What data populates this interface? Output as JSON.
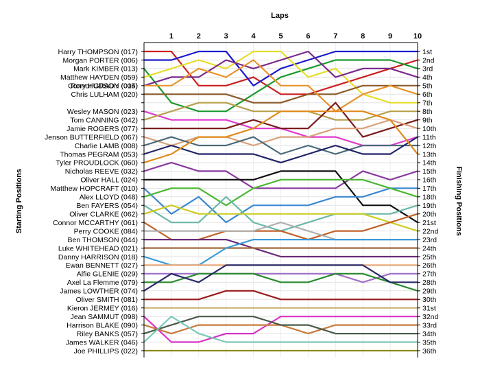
{
  "chart_data": {
    "type": "line",
    "xlabel": "Laps",
    "ylabel_left": "Starting Positions",
    "ylabel_right": "Finishing Positions",
    "x": [
      0,
      1,
      2,
      3,
      4,
      5,
      6,
      7,
      8,
      9,
      10
    ],
    "x_tick_labels": [
      "1",
      "2",
      "3",
      "4",
      "5",
      "6",
      "7",
      "8",
      "9",
      "10"
    ],
    "ylim": [
      1,
      36
    ],
    "y_inverted": true,
    "grid": "horizontal",
    "finish_labels": [
      "1st",
      "2nd",
      "3rd",
      "4th",
      "5th",
      "6th",
      "7th",
      "8th",
      "9th",
      "10th",
      "11th",
      "12th",
      "13th",
      "14th",
      "15th",
      "16th",
      "17th",
      "18th",
      "19th",
      "20th",
      "21st",
      "22nd",
      "23rd",
      "24th",
      "25th",
      "26th",
      "27th",
      "28th",
      "29th",
      "30th",
      "31st",
      "32nd",
      "33rd",
      "34th",
      "35th",
      "36th"
    ],
    "series": [
      {
        "name": "Harry THOMPSON (017)",
        "color": "#cc1f1f",
        "values": [
          1,
          1,
          5,
          5,
          4,
          6,
          6,
          5,
          4,
          3,
          2
        ]
      },
      {
        "name": "Morgan PORTER (006)",
        "color": "#1a1acc",
        "values": [
          2,
          2,
          1,
          1,
          5,
          3,
          2,
          1,
          1,
          1,
          1
        ]
      },
      {
        "name": "Mark KIMBER (013)",
        "color": "#1a9a2e",
        "values": [
          3,
          7,
          8,
          8,
          6,
          4,
          3,
          2,
          2,
          2,
          3
        ]
      },
      {
        "name": "Matthew HAYDEN (059)",
        "color": "#e6dd2a",
        "values": [
          4,
          3,
          2,
          3,
          1,
          1,
          4,
          3,
          6,
          7,
          7
        ]
      },
      {
        "name": "Rory HUDSON (005)",
        "color": "#7a2a8c",
        "values": [
          5,
          4,
          4,
          2,
          3,
          2,
          1,
          4,
          3,
          3,
          4
        ]
      },
      {
        "name": "Chris LULHAM (020)",
        "color": "#8a5a2a",
        "values": [
          6,
          6,
          6,
          6,
          7,
          7,
          6,
          6,
          5,
          5,
          5
        ]
      },
      {
        "name": "Connor GRADY (014)",
        "color": "#e8932a",
        "values": [
          5,
          5,
          3,
          4,
          2,
          5,
          5,
          8,
          6,
          5,
          6
        ]
      },
      {
        "name": "Wesley MASON (023)",
        "color": "#e03acf",
        "values": [
          8,
          9,
          9,
          9,
          10,
          10,
          11,
          11,
          12,
          12,
          11
        ]
      },
      {
        "name": "Tom CANNING (042)",
        "color": "#b8a04a",
        "values": [
          9,
          8,
          7,
          7,
          8,
          8,
          8,
          9,
          9,
          8,
          8
        ]
      },
      {
        "name": "Jamie ROGERS (077)",
        "color": "#7a1a1a",
        "values": [
          10,
          10,
          10,
          10,
          9,
          10,
          10,
          7,
          11,
          10,
          9
        ]
      },
      {
        "name": "Jenson BUTTERFIELD (067)",
        "color": "#d9a07a",
        "values": [
          11,
          12,
          11,
          11,
          12,
          11,
          11,
          10,
          10,
          9,
          10
        ]
      },
      {
        "name": "Charlie LAMB (008)",
        "color": "#4a6a7a",
        "values": [
          12,
          11,
          12,
          12,
          11,
          13,
          12,
          13,
          12,
          12,
          12
        ]
      },
      {
        "name": "Thomas PEGRAM (053)",
        "color": "#222266",
        "values": [
          13,
          12,
          13,
          13,
          13,
          14,
          13,
          12,
          13,
          13,
          11
        ]
      },
      {
        "name": "Tyler PROUDLOCK (060)",
        "color": "#e08a1a",
        "values": [
          14,
          13,
          11,
          11,
          10,
          8,
          8,
          8,
          8,
          9,
          13
        ]
      },
      {
        "name": "Nicholas REEVE (032)",
        "color": "#8a3aa0",
        "values": [
          15,
          14,
          15,
          15,
          17,
          17,
          17,
          17,
          15,
          16,
          15
        ]
      },
      {
        "name": "Oliver HALL (024)",
        "color": "#111111",
        "values": [
          16,
          16,
          16,
          16,
          16,
          15,
          15,
          15,
          19,
          19,
          21
        ]
      },
      {
        "name": "Matthew HOPCRAFT (010)",
        "color": "#3a88d0",
        "values": [
          17,
          20,
          18,
          21,
          19,
          19,
          19,
          18,
          18,
          17,
          17
        ]
      },
      {
        "name": "Alex LLOYD (048)",
        "color": "#4ab830",
        "values": [
          18,
          17,
          17,
          19,
          17,
          16,
          16,
          16,
          16,
          17,
          18
        ]
      },
      {
        "name": "Ben FAYERS (054)",
        "color": "#6ab8a8",
        "values": [
          19,
          21,
          21,
          18,
          21,
          22,
          21,
          20,
          20,
          20,
          19
        ]
      },
      {
        "name": "Oliver CLARKE (062)",
        "color": "#cccc22",
        "values": [
          20,
          19,
          20,
          20,
          20,
          20,
          20,
          20,
          20,
          21,
          22
        ]
      },
      {
        "name": "Connor MCCARTHY (061)",
        "color": "#c0622a",
        "values": [
          21,
          23,
          23,
          22,
          22,
          22,
          23,
          22,
          22,
          21,
          20
        ]
      },
      {
        "name": "Perry COOKE (084)",
        "color": "#b0b0b0",
        "values": [
          22,
          22,
          22,
          22,
          22,
          21,
          22,
          23,
          23,
          23,
          23
        ]
      },
      {
        "name": "Ben THOMSON (044)",
        "color": "#6a2a7a",
        "values": [
          23,
          23,
          23,
          23,
          24,
          25,
          25,
          25,
          25,
          25,
          25
        ]
      },
      {
        "name": "Luke WHITEHEAD (021)",
        "color": "#a0683a",
        "values": [
          24,
          24,
          24,
          24,
          24,
          24,
          24,
          24,
          24,
          24,
          24
        ]
      },
      {
        "name": "Danny HARRISON (018)",
        "color": "#3a9ad8",
        "values": [
          25,
          26,
          26,
          24,
          23,
          23,
          23,
          23,
          23,
          23,
          23
        ]
      },
      {
        "name": "Ewan BENNETT (027)",
        "color": "#e8a87a",
        "values": [
          26,
          26,
          26,
          26,
          26,
          26,
          26,
          26,
          26,
          26,
          26
        ]
      },
      {
        "name": "Alfie GLENIE (029)",
        "color": "#a070c8",
        "values": [
          27,
          27,
          27,
          27,
          27,
          27,
          27,
          27,
          28,
          27,
          27
        ]
      },
      {
        "name": "Axel La Flemme (079)",
        "color": "#2a8a30",
        "values": [
          28,
          28,
          27,
          27,
          27,
          28,
          28,
          27,
          27,
          28,
          29
        ]
      },
      {
        "name": "James LOWTHER (074)",
        "color": "#2a2a6a",
        "values": [
          29,
          27,
          28,
          26,
          26,
          26,
          26,
          26,
          26,
          28,
          28
        ]
      },
      {
        "name": "Oliver SMITH (081)",
        "color": "#9a1a1a",
        "values": [
          30,
          30,
          30,
          29,
          29,
          30,
          30,
          30,
          30,
          30,
          30
        ]
      },
      {
        "name": "Kieron JERMEY (016)",
        "color": "#c8b070",
        "values": [
          31,
          31,
          31,
          31,
          31,
          31,
          31,
          31,
          31,
          31,
          31
        ]
      },
      {
        "name": "Jean SAMMUT (098)",
        "color": "#d830c8",
        "values": [
          32,
          35,
          35,
          34,
          34,
          32,
          32,
          32,
          32,
          32,
          32
        ]
      },
      {
        "name": "Harrison BLAKE (090)",
        "color": "#c87a3a",
        "values": [
          33,
          34,
          33,
          33,
          33,
          33,
          34,
          33,
          33,
          33,
          33
        ]
      },
      {
        "name": "Riley BANKS (057)",
        "color": "#4a5a4a",
        "values": [
          34,
          33,
          32,
          32,
          32,
          33,
          33,
          34,
          34,
          34,
          34
        ]
      },
      {
        "name": "James WALKER (046)",
        "color": "#7ac8b8",
        "values": [
          35,
          32,
          34,
          35,
          35,
          35,
          35,
          35,
          35,
          35,
          35
        ]
      },
      {
        "name": "Joe PHILLIPS (022)",
        "color": "#8a8a1a",
        "values": [
          36,
          36,
          36,
          36,
          36,
          36,
          36,
          36,
          36,
          36,
          36
        ]
      }
    ]
  }
}
